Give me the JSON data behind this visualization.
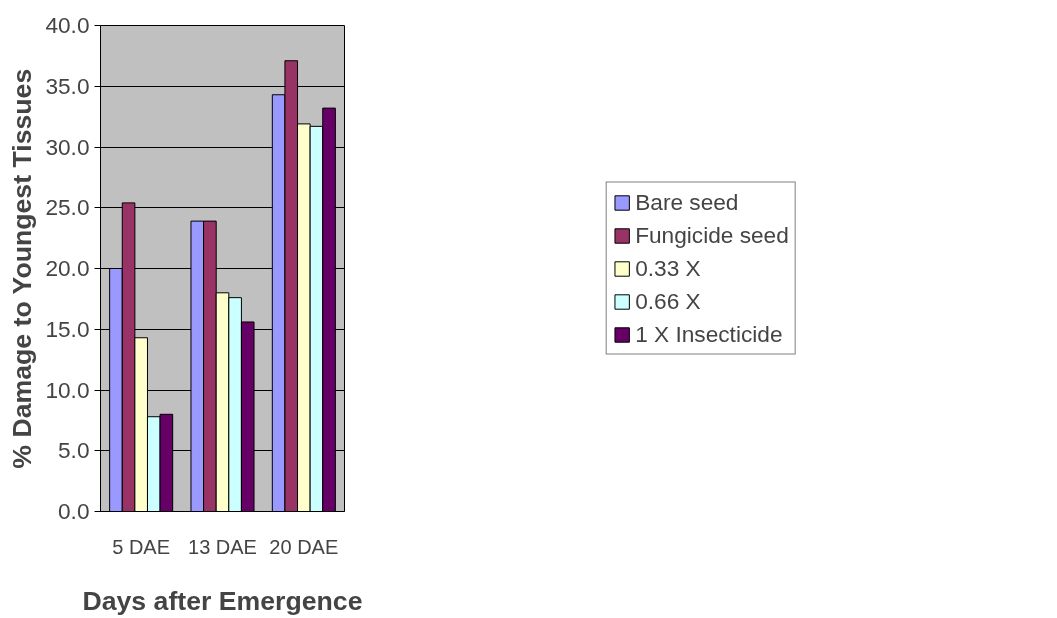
{
  "chart_data": {
    "type": "bar",
    "xlabel": "Days after Emergence",
    "ylabel": "% Damage to Youngest Tissues",
    "categories": [
      "5 DAE",
      "13 DAE",
      "20 DAE"
    ],
    "series": [
      {
        "name": "Bare seed",
        "color": "#9999ff",
        "values": [
          20.0,
          23.9,
          34.3
        ]
      },
      {
        "name": "Fungicide seed",
        "color": "#993366",
        "values": [
          25.4,
          23.9,
          37.1
        ]
      },
      {
        "name": "0.33 X",
        "color": "#ffffcc",
        "values": [
          14.3,
          18.0,
          31.9
        ]
      },
      {
        "name": "0.66 X",
        "color": "#ccffff",
        "values": [
          7.8,
          17.6,
          31.7
        ]
      },
      {
        "name": "1 X Insecticide",
        "color": "#660066",
        "values": [
          8.0,
          15.6,
          33.2
        ]
      }
    ],
    "ylim": [
      0,
      40
    ],
    "yticks": [
      {
        "value": 0,
        "label": "0.0"
      },
      {
        "value": 5,
        "label": "5.0"
      },
      {
        "value": 10,
        "label": "10.0"
      },
      {
        "value": 15,
        "label": "15.0"
      },
      {
        "value": 20,
        "label": "20.0"
      },
      {
        "value": 25,
        "label": "25.0"
      },
      {
        "value": 30,
        "label": "30.0"
      },
      {
        "value": 35,
        "label": "35.0"
      },
      {
        "value": 40,
        "label": "40.0"
      }
    ],
    "grid": "y",
    "legend": "right"
  }
}
